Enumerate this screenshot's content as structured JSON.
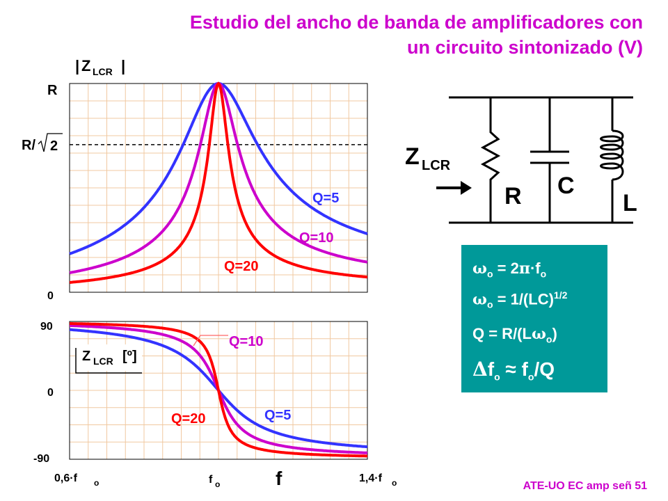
{
  "title": {
    "line1": "Estudio del ancho de banda de amplificadores con",
    "line2": "un circuito sintonizado (V)"
  },
  "footer": "ATE-UO EC amp señ 51",
  "chart_data": [
    {
      "type": "line",
      "name": "magnitude",
      "ylabel_main": "Z",
      "ylabel_sub": "LCR",
      "y_ticks": {
        "R": "R",
        "R_sqrt2_prefix": "R/",
        "R_sqrt2_radicand": "2",
        "zero": "0"
      },
      "x_range_rel": [
        0.6,
        1.4
      ],
      "y_range_rel": [
        0,
        1
      ],
      "reference_level": 0.7071,
      "model": "|Z|/R = 1/sqrt(1 + Q^2 (f/fo - fo/f)^2)",
      "grid": true,
      "series": [
        {
          "label": "Q=5",
          "q": 5,
          "color": "#3333ff"
        },
        {
          "label": "Q=10",
          "q": 10,
          "color": "#cc00cc"
        },
        {
          "label": "Q=20",
          "q": 20,
          "color": "#ff0000"
        }
      ]
    },
    {
      "type": "line",
      "name": "phase",
      "ylabel_main": "Z",
      "ylabel_sub": "LCR",
      "ylabel_units": "[º]",
      "y_ticks": [
        "90",
        "0",
        "-90"
      ],
      "y_range": [
        -90,
        90
      ],
      "x_range_rel": [
        0.6,
        1.4
      ],
      "x_ticks": [
        {
          "main": "0,6·f",
          "sub": "o",
          "rel": 0.6
        },
        {
          "main": "f",
          "sub": "o",
          "rel": 1.0
        },
        {
          "main": "1,4·f",
          "sub": "o",
          "rel": 1.4
        }
      ],
      "xlabel": "f",
      "model": "phase = -atan(Q (f/fo - fo/f))",
      "grid": true,
      "series": [
        {
          "label": "Q=5",
          "q": 5,
          "color": "#3333ff"
        },
        {
          "label": "Q=10",
          "q": 10,
          "color": "#cc00cc"
        },
        {
          "label": "Q=20",
          "q": 20,
          "color": "#ff0000"
        }
      ]
    }
  ],
  "circuit": {
    "z_main": "Z",
    "z_sub": "LCR",
    "r_label": "R",
    "c_label": "C",
    "l_label": "L"
  },
  "formulas": {
    "row1": {
      "greek": "ω",
      "sub": "o",
      "text": " = 2",
      "pi": "π",
      "text2": "·f",
      "sub2": "o"
    },
    "row2": {
      "greek": "ω",
      "sub": "o",
      "text": " = 1/(LC)",
      "sup": "1/2"
    },
    "row3": {
      "text": "Q = R/(L",
      "greek": "ω",
      "sub": "o",
      "close": ")"
    },
    "row4": {
      "delta": "Δ",
      "f": "f",
      "sub": "o",
      "approx": " ≈ f",
      "sub2": "o",
      "tail": "/Q"
    }
  },
  "colors": {
    "title": "#cc00cc",
    "q5": "#3333ff",
    "q10": "#cc00cc",
    "q20": "#ff0000",
    "box": "#009999",
    "grid": "#f0c8a0"
  }
}
